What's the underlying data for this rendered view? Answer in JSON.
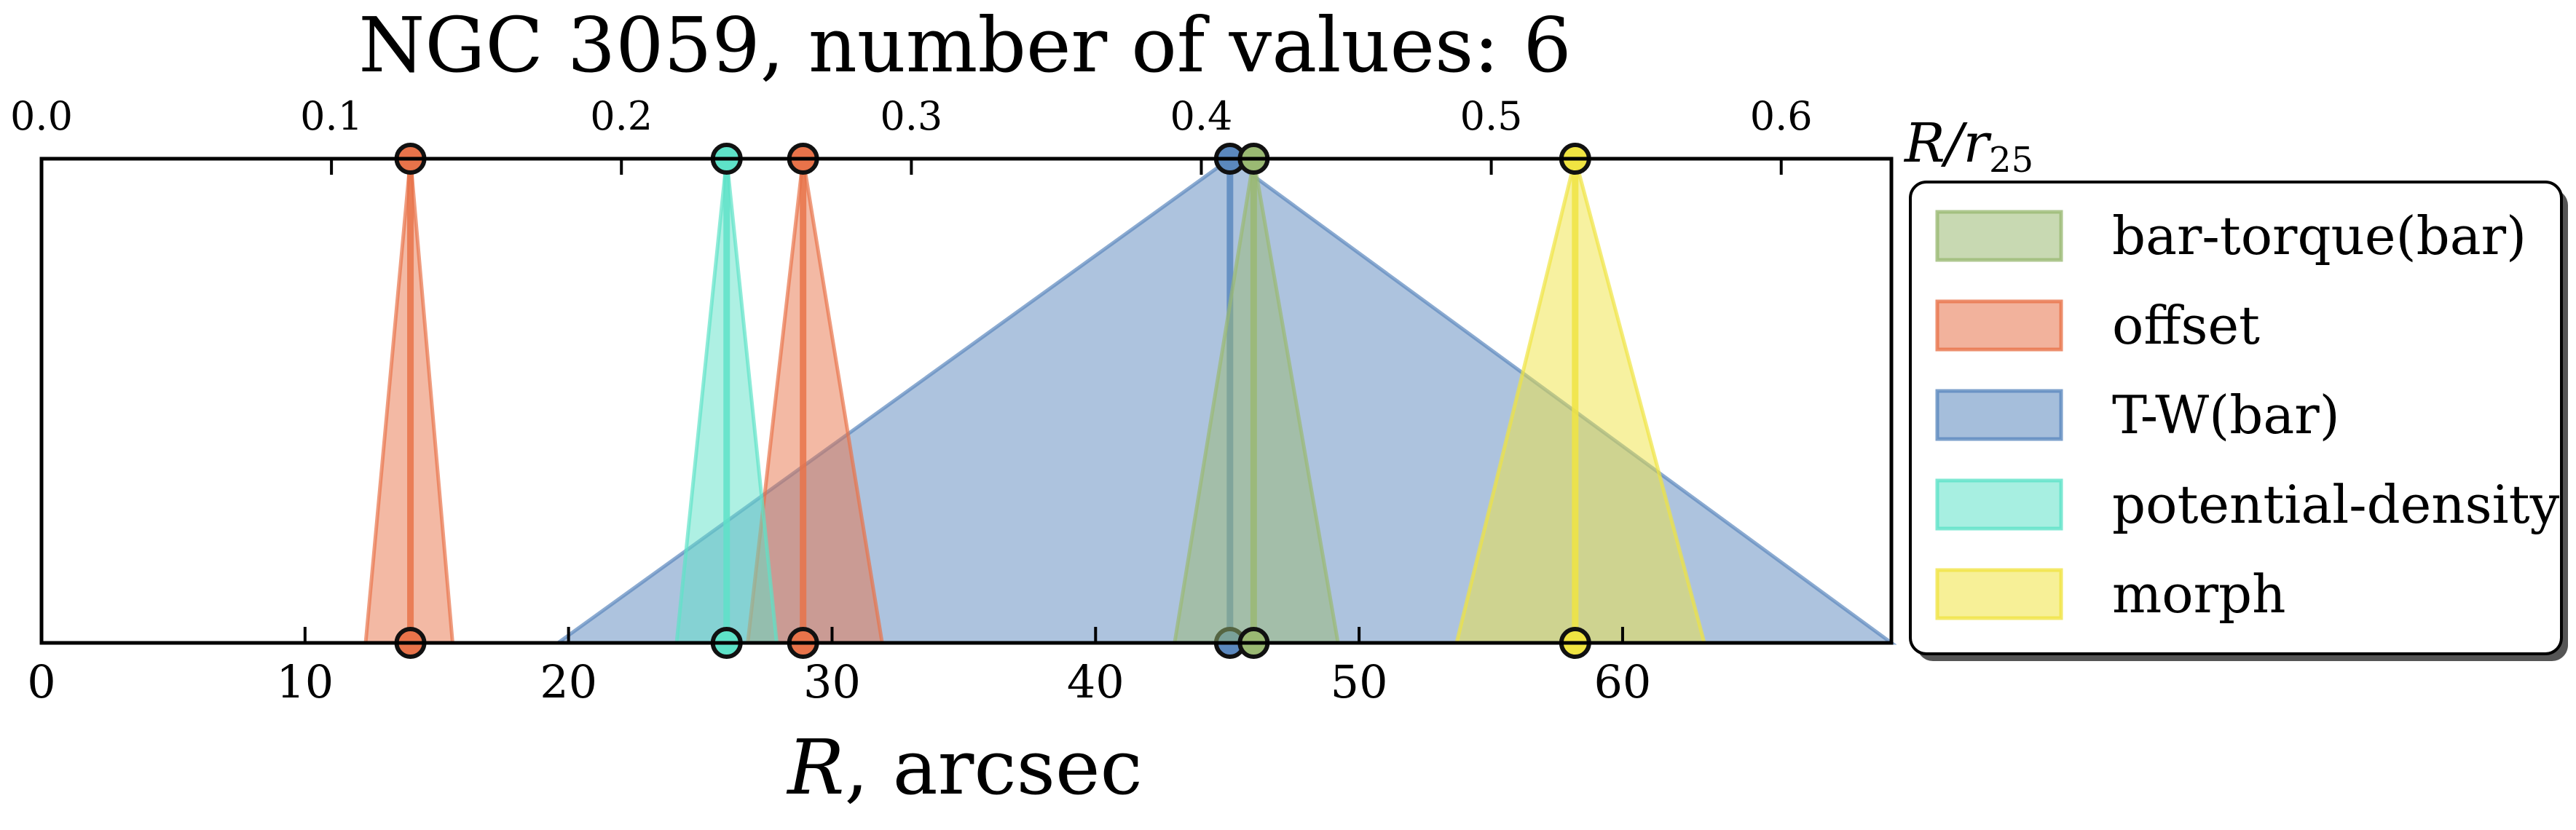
{
  "chart_data": {
    "type": "area",
    "title": "NGC 3059, number of values: 6",
    "xlabel": "R, arcsec",
    "top_xlabel": "R/r25",
    "xlim": [
      0,
      70.2
    ],
    "x_ticks": [
      0,
      10,
      20,
      30,
      40,
      50,
      60
    ],
    "top_xlim": [
      0,
      0.638
    ],
    "top_ticks": [
      0.0,
      0.1,
      0.2,
      0.3,
      0.4,
      0.5,
      0.6
    ],
    "top_tick_labels": [
      "0.0",
      "0.1",
      "0.2",
      "0.3",
      "0.4",
      "0.5",
      "0.6"
    ],
    "grid": false,
    "legend_position": "right",
    "series": [
      {
        "name": "bar-torque(bar)",
        "color": "#9ab973",
        "estimates": [
          {
            "center": 46.0,
            "low": 43.0,
            "high": 49.2
          }
        ]
      },
      {
        "name": "offset",
        "color": "#e8734a",
        "estimates": [
          {
            "center": 14.0,
            "low": 12.3,
            "high": 15.6
          },
          {
            "center": 28.9,
            "low": 26.8,
            "high": 31.9
          }
        ]
      },
      {
        "name": "T-W(bar)",
        "color": "#5b88be",
        "estimates": [
          {
            "center": 45.1,
            "low": 19.6,
            "high": 70.2
          }
        ]
      },
      {
        "name": "potential-density",
        "color": "#5ee2c8",
        "estimates": [
          {
            "center": 26.0,
            "low": 24.1,
            "high": 27.9
          }
        ]
      },
      {
        "name": "morph",
        "color": "#f0e442",
        "estimates": [
          {
            "center": 58.2,
            "low": 53.7,
            "high": 63.1
          }
        ]
      }
    ]
  }
}
